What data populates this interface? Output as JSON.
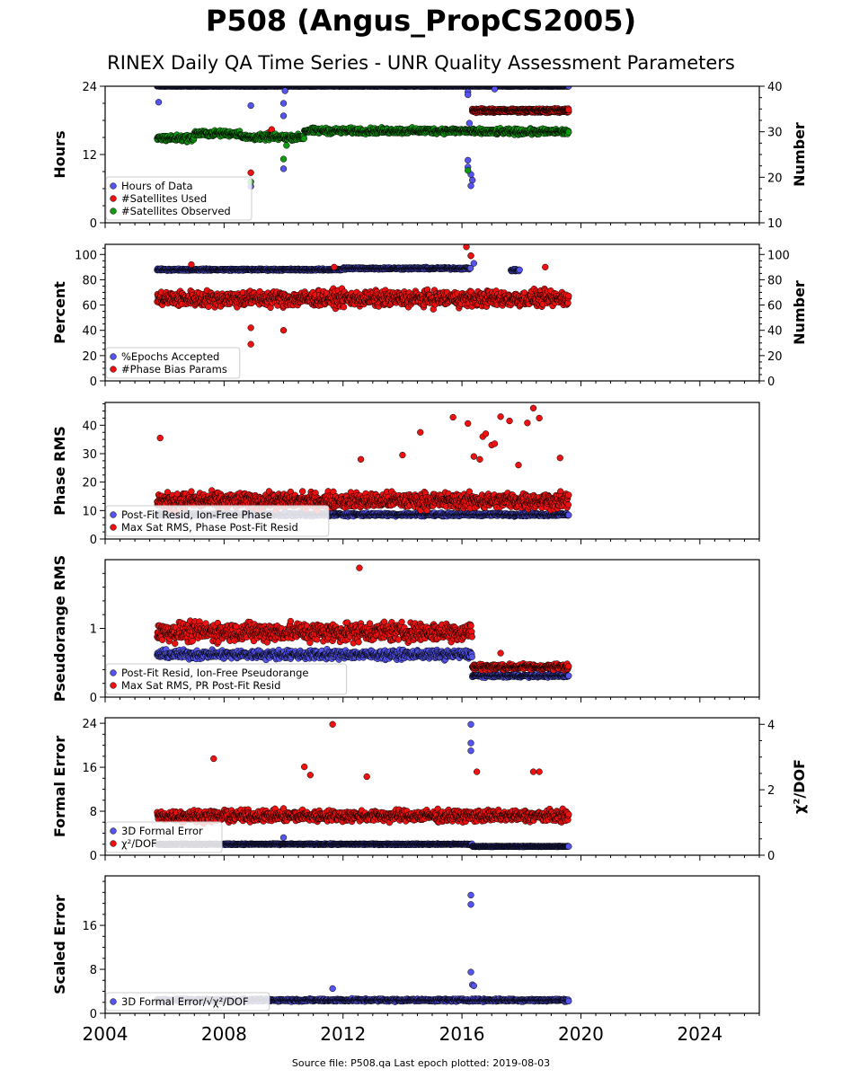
{
  "page": {
    "title": "P508 (Angus_PropCS2005)",
    "subtitle": "RINEX Daily QA Time Series - UNR Quality Assessment Parameters",
    "footer": "Source file: P508.qa Last epoch plotted: 2019-08-03"
  },
  "colors": {
    "blue": "#5555ee",
    "red": "#ee1111",
    "green": "#119911",
    "navy": "#1a1a66",
    "edge": "#000000"
  },
  "chart_data": {
    "type": "scatter",
    "x_axis": {
      "range": [
        2004,
        2026
      ],
      "ticks": [
        2004,
        2008,
        2012,
        2016,
        2020,
        2024
      ],
      "tick_labels": [
        "2004",
        "2008",
        "2012",
        "2016",
        "2020",
        "2024"
      ]
    },
    "data_span": [
      2005.75,
      2019.59
    ],
    "panels": [
      {
        "id": "hours",
        "ylabel": "Hours",
        "ylim": [
          0,
          24
        ],
        "yticks": [
          0,
          12,
          24
        ],
        "y2label": "Number",
        "y2lim": [
          10,
          40
        ],
        "y2ticks": [
          10,
          20,
          30,
          40
        ],
        "legend": [
          "Hours of Data",
          "#Satellites Used",
          "#Satellites Observed"
        ],
        "series": [
          {
            "name": "Hours of Data",
            "color": "blue",
            "axis": "left",
            "segments": [
              [
                2005.75,
                2019.59,
                24,
                0.05
              ]
            ],
            "outliers": [
              [
                2005.8,
                21.2
              ],
              [
                2008.9,
                20.6
              ],
              [
                2010.0,
                18.8
              ],
              [
                2010.0,
                21.0
              ],
              [
                2010.05,
                23.2
              ],
              [
                2010.0,
                9.5
              ],
              [
                2008.9,
                6.4
              ],
              [
                2016.2,
                23.0
              ],
              [
                2016.2,
                11.0
              ],
              [
                2016.2,
                9.8
              ],
              [
                2016.3,
                8.5
              ],
              [
                2016.35,
                7.5
              ],
              [
                2016.3,
                6.5
              ],
              [
                2016.25,
                17.5
              ],
              [
                2016.2,
                22.5
              ],
              [
                2017.1,
                23.5
              ]
            ]
          },
          {
            "name": "#Satellites Used",
            "color": "red",
            "axis": "right",
            "segments": [
              [
                2016.35,
                2019.59,
                34.5,
                0.4
              ],
              [
                2016.35,
                2019.59,
                34.8,
                0.4
              ]
            ],
            "outliers": [
              [
                2008.9,
                21.0
              ],
              [
                2009.5,
                29.8
              ],
              [
                2009.6,
                30.5
              ]
            ]
          },
          {
            "name": "#Satellites Observed",
            "color": "green",
            "axis": "right",
            "segments": [
              [
                2005.75,
                2007.0,
                28.6,
                1.0
              ],
              [
                2007.0,
                2008.6,
                29.6,
                0.9
              ],
              [
                2008.6,
                2010.7,
                28.8,
                0.9
              ],
              [
                2010.7,
                2016.3,
                30.2,
                0.9
              ],
              [
                2016.3,
                2019.59,
                30.0,
                0.9
              ]
            ],
            "outliers": [
              [
                2008.9,
                19.0
              ],
              [
                2010.0,
                24.0
              ],
              [
                2016.2,
                21.5
              ],
              [
                2010.1,
                27.0
              ]
            ]
          }
        ]
      },
      {
        "id": "percent",
        "ylabel": "Percent",
        "ylim": [
          0,
          108
        ],
        "yticks": [
          0,
          20,
          40,
          60,
          80,
          100
        ],
        "y2label": "Number",
        "y2lim": [
          0,
          108
        ],
        "y2ticks": [
          0,
          20,
          40,
          60,
          80,
          100
        ],
        "legend": [
          "%Epochs Accepted",
          "#Phase Bias Params"
        ],
        "series": [
          {
            "name": "%Epochs Accepted",
            "color": "blue",
            "axis": "left",
            "segments": [
              [
                2005.75,
                2012.0,
                88.0,
                1.0
              ],
              [
                2012.0,
                2016.3,
                89.0,
                1.2
              ],
              [
                2017.65,
                2017.95,
                87.5,
                1.0
              ]
            ],
            "outliers": [
              [
                2016.3,
                99.0
              ],
              [
                2016.4,
                93.0
              ]
            ]
          },
          {
            "name": "#Phase Bias Params",
            "color": "red",
            "axis": "right",
            "segments": [
              [
                2005.75,
                2019.59,
                65.0,
                9.0
              ]
            ],
            "outliers": [
              [
                2008.9,
                42.0
              ],
              [
                2008.9,
                29.0
              ],
              [
                2010.0,
                40.0
              ],
              [
                2011.7,
                90.0
              ],
              [
                2016.15,
                106.0
              ],
              [
                2016.3,
                99.0
              ],
              [
                2018.8,
                90.0
              ],
              [
                2006.9,
                92.0
              ]
            ]
          }
        ]
      },
      {
        "id": "phase",
        "ylabel": "Phase RMS",
        "ylim": [
          0,
          48
        ],
        "yticks": [
          0,
          10,
          20,
          30,
          40
        ],
        "legend": [
          "Post-Fit Resid, Ion-Free Phase",
          "Max Sat RMS, Phase Post-Fit Resid"
        ],
        "series": [
          {
            "name": "Post-Fit Resid, Ion-Free Phase",
            "color": "blue",
            "axis": "left",
            "segments": [
              [
                2005.75,
                2019.59,
                8.6,
                0.8
              ]
            ],
            "outliers": []
          },
          {
            "name": "Max Sat RMS, Phase Post-Fit Resid",
            "color": "red",
            "axis": "left",
            "segments": [
              [
                2005.75,
                2019.59,
                13.5,
                4.0
              ]
            ],
            "outliers": [
              [
                2005.85,
                35.5
              ],
              [
                2014.6,
                37.5
              ],
              [
                2015.7,
                42.8
              ],
              [
                2016.2,
                40.6
              ],
              [
                2016.7,
                36.0
              ],
              [
                2016.8,
                37.0
              ],
              [
                2017.0,
                33.0
              ],
              [
                2017.1,
                33.5
              ],
              [
                2017.3,
                43.0
              ],
              [
                2017.6,
                41.5
              ],
              [
                2018.2,
                40.8
              ],
              [
                2018.4,
                46.0
              ],
              [
                2018.6,
                42.5
              ],
              [
                2019.3,
                28.5
              ],
              [
                2016.4,
                29.0
              ],
              [
                2016.6,
                28.0
              ],
              [
                2017.9,
                26.0
              ],
              [
                2014.0,
                29.5
              ],
              [
                2012.6,
                28.0
              ]
            ]
          }
        ]
      },
      {
        "id": "pseudorange",
        "ylabel": "Pseudorange RMS",
        "ylim": [
          0,
          2.0
        ],
        "yticks": [
          0,
          1
        ],
        "yminor": [
          0.2,
          0.4,
          0.6,
          0.8,
          1.2,
          1.4,
          1.6,
          1.8
        ],
        "legend": [
          "Post-Fit Resid, Ion-Free Pseudorange",
          "Max Sat RMS, PR Post-Fit Resid"
        ],
        "series": [
          {
            "name": "Post-Fit Resid, Ion-Free Pseudorange",
            "color": "blue",
            "axis": "left",
            "segments": [
              [
                2005.75,
                2016.35,
                0.62,
                0.09
              ],
              [
                2016.35,
                2019.59,
                0.31,
                0.03
              ]
            ],
            "outliers": []
          },
          {
            "name": "Max Sat RMS, PR Post-Fit Resid",
            "color": "red",
            "axis": "left",
            "segments": [
              [
                2005.75,
                2016.35,
                0.95,
                0.2
              ],
              [
                2016.35,
                2019.59,
                0.44,
                0.06
              ]
            ],
            "outliers": [
              [
                2012.55,
                1.88
              ],
              [
                2017.3,
                0.64
              ]
            ]
          }
        ]
      },
      {
        "id": "formal",
        "ylabel": "Formal Error",
        "ylim": [
          0,
          25
        ],
        "yticks": [
          0,
          8,
          16,
          24
        ],
        "y2label": "χ²/DOF",
        "y2lim": [
          0,
          4.2
        ],
        "y2ticks": [
          0,
          2,
          4
        ],
        "legend": [
          "3D Formal Error",
          "χ²/DOF"
        ],
        "series": [
          {
            "name": "3D Formal Error",
            "color": "blue",
            "axis": "left",
            "segments": [
              [
                2005.75,
                2016.35,
                2.0,
                0.15
              ],
              [
                2016.35,
                2019.59,
                1.6,
                0.1
              ]
            ],
            "outliers": [
              [
                2016.3,
                23.8
              ],
              [
                2016.3,
                20.4
              ],
              [
                2016.3,
                19.0
              ],
              [
                2010.0,
                3.2
              ]
            ]
          },
          {
            "name": "χ²/DOF",
            "color": "red",
            "axis": "right",
            "segments": [
              [
                2005.75,
                2019.59,
                1.2,
                0.25
              ]
            ],
            "outliers": [
              [
                2011.65,
                4.0
              ],
              [
                2007.65,
                2.95
              ],
              [
                2010.7,
                2.7
              ],
              [
                2010.9,
                2.45
              ],
              [
                2012.8,
                2.4
              ],
              [
                2016.5,
                2.55
              ],
              [
                2018.4,
                2.55
              ],
              [
                2018.6,
                2.55
              ]
            ]
          }
        ]
      },
      {
        "id": "scaled",
        "ylabel": "Scaled Error",
        "ylim": [
          0,
          25
        ],
        "yticks": [
          0,
          8,
          16
        ],
        "legend": [
          "3D Formal Error/√χ²/DOF"
        ],
        "series": [
          {
            "name": "3D Formal Error/√χ²/DOF",
            "color": "blue",
            "axis": "left",
            "segments": [
              [
                2005.75,
                2019.59,
                2.4,
                0.35
              ]
            ],
            "outliers": [
              [
                2016.3,
                21.5
              ],
              [
                2016.3,
                19.8
              ],
              [
                2016.3,
                7.5
              ],
              [
                2016.35,
                5.2
              ],
              [
                2016.4,
                5.0
              ],
              [
                2011.65,
                4.5
              ]
            ]
          }
        ]
      }
    ]
  }
}
